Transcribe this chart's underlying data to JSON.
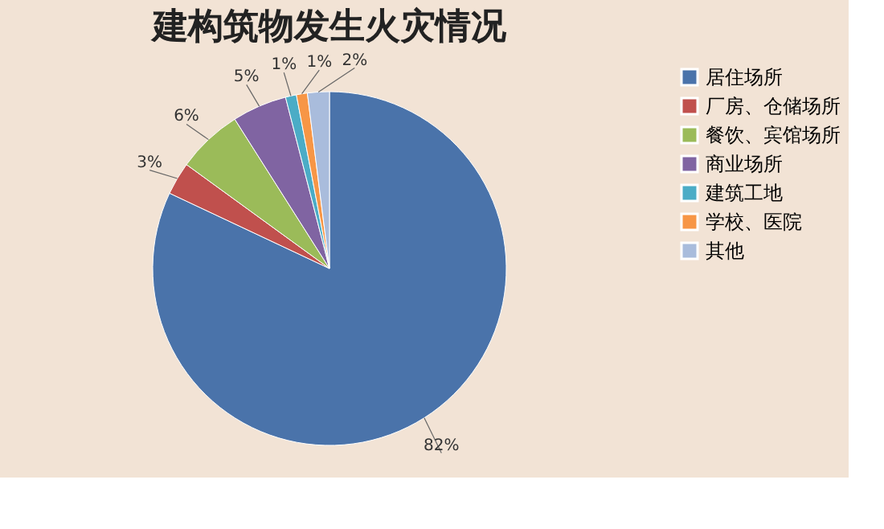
{
  "chart_data": {
    "type": "pie",
    "title": "建构筑物发生火灾情况",
    "categories": [
      "居住场所",
      "厂房、仓储场所",
      "餐饮、宾馆场所",
      "商业场所",
      "建筑工地",
      "学校、医院",
      "其他"
    ],
    "values": [
      82,
      3,
      6,
      5,
      1,
      1,
      2
    ],
    "colors": [
      "#4a73aa",
      "#c0504d",
      "#9bbb59",
      "#8064a2",
      "#4bacc6",
      "#f79646",
      "#a9bcdc"
    ],
    "value_labels": [
      "82%",
      "3%",
      "6%",
      "5%",
      "1%",
      "1%",
      "2%"
    ],
    "legend": "right"
  }
}
